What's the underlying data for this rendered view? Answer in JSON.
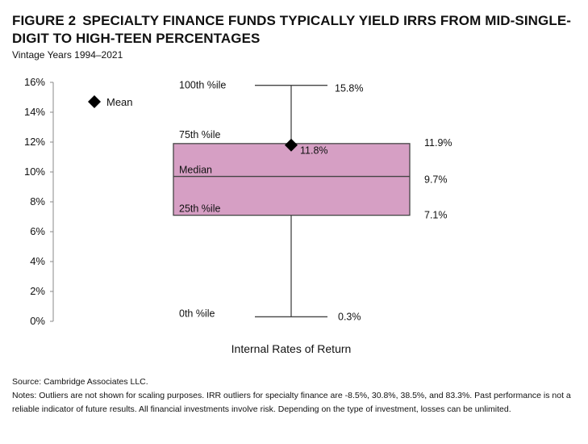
{
  "figure_label": "FIGURE 2",
  "title": "SPECIALTY FINANCE FUNDS TYPICALLY YIELD IRRS FROM MID-SINGLE-DIGIT TO HIGH-TEEN PERCENTAGES",
  "subtitle": "Vintage Years 1994–2021",
  "chart_data": {
    "type": "box",
    "ylim": [
      0,
      16
    ],
    "y_ticks": [
      0,
      2,
      4,
      6,
      8,
      10,
      12,
      14,
      16
    ],
    "y_tick_labels": [
      "0%",
      "2%",
      "4%",
      "6%",
      "8%",
      "10%",
      "12%",
      "14%",
      "16%"
    ],
    "xlabel": "Internal Rates of Return",
    "legend": {
      "label": "Mean",
      "position": "top-left",
      "marker": "diamond"
    },
    "box": {
      "min": 0.3,
      "q1": 7.1,
      "median": 9.7,
      "q3": 11.9,
      "max": 15.8,
      "mean": 11.8
    },
    "stat_labels": {
      "max": "100th %ile",
      "q3": "75th %ile",
      "median": "Median",
      "q1": "25th %ile",
      "min": "0th %ile"
    },
    "value_labels": {
      "max": "15.8%",
      "q3": "11.9%",
      "median": "9.7%",
      "q1": "7.1%",
      "min": "0.3%",
      "mean": "11.8%"
    },
    "colors": {
      "box_fill": "#d69fc4",
      "box_stroke": "#444444"
    }
  },
  "footer": {
    "source": "Source: Cambridge Associates LLC.",
    "notes": "Notes: Outliers are not shown for scaling purposes. IRR outliers for specialty finance are -8.5%, 30.8%, 38.5%, and 83.3%. Past performance is not a reliable indicator of future results. All financial investments involve risk. Depending on the type of investment, losses can be unlimited."
  }
}
